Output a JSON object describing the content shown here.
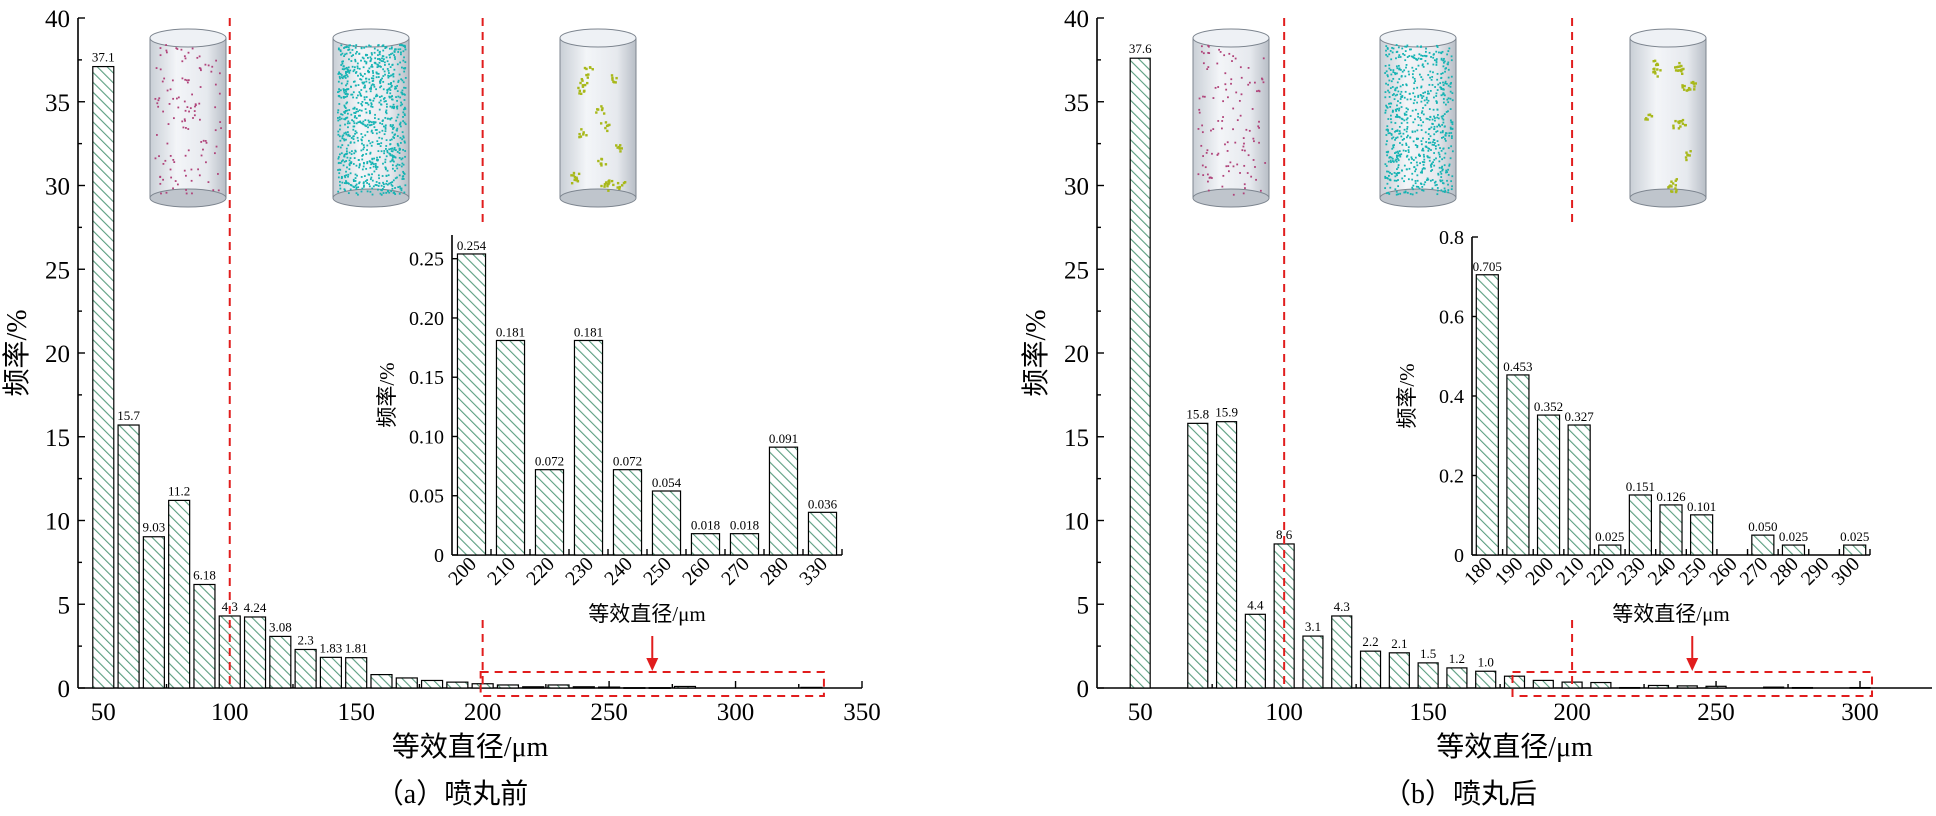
{
  "colors": {
    "bar_hatch": "#5a9e80",
    "bar_fill": "#ffffff",
    "highlight": "#e11d1d",
    "particles_a": "#b0437a",
    "particles_b": "#16b3b3",
    "particles_c": "#a8b81a"
  },
  "panels": [
    {
      "caption": "（a）喷丸前"
    },
    {
      "caption": "（b）喷丸后"
    }
  ],
  "chart_data": [
    {
      "type": "bar",
      "panel": "a",
      "xlabel": "等效直径/μm",
      "ylabel": "频率/%",
      "xlim": [
        40,
        350
      ],
      "ylim": [
        0,
        40
      ],
      "xticks": [
        50,
        100,
        150,
        200,
        250,
        300,
        350
      ],
      "yticks": [
        0,
        5,
        10,
        15,
        20,
        25,
        30,
        35,
        40
      ],
      "x": [
        50,
        60,
        70,
        80,
        90,
        100,
        110,
        120,
        130,
        140,
        150,
        160,
        170,
        180,
        190,
        200,
        210,
        220,
        230,
        240,
        250,
        260,
        270,
        280,
        330
      ],
      "values": [
        37.1,
        15.7,
        9.03,
        11.2,
        6.18,
        4.3,
        4.24,
        3.08,
        2.3,
        1.83,
        1.81,
        0.8,
        0.6,
        0.45,
        0.35,
        0.254,
        0.181,
        0.072,
        0.181,
        0.072,
        0.054,
        0.018,
        0.018,
        0.091,
        0.036
      ],
      "labels": [
        "37.1",
        "15.7",
        "9.03",
        "11.2",
        "6.18",
        "4.3",
        "4.24",
        "3.08",
        "2.3",
        "1.83",
        "1.81",
        "",
        "",
        "",
        "",
        "",
        "",
        "",
        "",
        "",
        "",
        "",
        "",
        "",
        ""
      ],
      "guide_lines": [
        100,
        200
      ],
      "highlight_x_range": [
        200,
        330
      ],
      "inset": {
        "type": "bar",
        "xlabel": "等效直径/μm",
        "ylabel": "频率/%",
        "ylim": [
          0,
          0.27
        ],
        "yticks": [
          "0",
          "0.05",
          "0.10",
          "0.15",
          "0.20",
          "0.25"
        ],
        "ytick_values": [
          0,
          0.05,
          0.1,
          0.15,
          0.2,
          0.25
        ],
        "categories": [
          "200",
          "210",
          "220",
          "230",
          "240",
          "250",
          "260",
          "270",
          "280",
          "330"
        ],
        "values": [
          0.254,
          0.181,
          0.072,
          0.181,
          0.072,
          0.054,
          0.018,
          0.018,
          0.091,
          0.036
        ],
        "labels": [
          "0.254",
          "0.181",
          "0.072",
          "0.181",
          "0.072",
          "0.054",
          "0.018",
          "0.018",
          "0.091",
          "0.036"
        ]
      }
    },
    {
      "type": "bar",
      "panel": "b",
      "xlabel": "等效直径/μm",
      "ylabel": "频率/%",
      "xlim": [
        35,
        325
      ],
      "ylim": [
        0,
        40
      ],
      "xticks": [
        50,
        100,
        150,
        200,
        250,
        300
      ],
      "yticks": [
        0,
        5,
        10,
        15,
        20,
        25,
        30,
        35,
        40
      ],
      "x": [
        50,
        70,
        80,
        90,
        100,
        110,
        120,
        130,
        140,
        150,
        160,
        170,
        180,
        190,
        200,
        210,
        220,
        230,
        240,
        250,
        270,
        280,
        300
      ],
      "values": [
        37.6,
        15.8,
        15.9,
        4.4,
        8.6,
        3.1,
        4.3,
        2.2,
        2.1,
        1.5,
        1.2,
        1.0,
        0.705,
        0.453,
        0.352,
        0.327,
        0.025,
        0.151,
        0.126,
        0.101,
        0.05,
        0.025,
        0.025
      ],
      "labels": [
        "37.6",
        "15.8",
        "15.9",
        "4.4",
        "8.6",
        "3.1",
        "4.3",
        "2.2",
        "2.1",
        "1.5",
        "1.2",
        "1.0",
        "",
        "",
        "",
        "",
        "",
        "",
        "",
        "",
        "",
        "",
        ""
      ],
      "guide_lines": [
        100,
        200
      ],
      "highlight_x_range": [
        180,
        300
      ],
      "inset": {
        "type": "bar",
        "xlabel": "等效直径/μm",
        "ylabel": "频率/%",
        "ylim": [
          0,
          0.8
        ],
        "yticks": [
          "0",
          "0.2",
          "0.4",
          "0.6",
          "0.8"
        ],
        "ytick_values": [
          0,
          0.2,
          0.4,
          0.6,
          0.8
        ],
        "categories": [
          "180",
          "190",
          "200",
          "210",
          "220",
          "230",
          "240",
          "250",
          "260",
          "270",
          "280",
          "290",
          "300"
        ],
        "values": [
          0.705,
          0.453,
          0.352,
          0.327,
          0.025,
          0.151,
          0.126,
          0.101,
          0,
          0.05,
          0.025,
          0,
          0.025
        ],
        "labels": [
          "0.705",
          "0.453",
          "0.352",
          "0.327",
          "0.025",
          "0.151",
          "0.126",
          "0.101",
          "",
          "0.050",
          "0.025",
          "",
          "0.025"
        ]
      }
    }
  ]
}
